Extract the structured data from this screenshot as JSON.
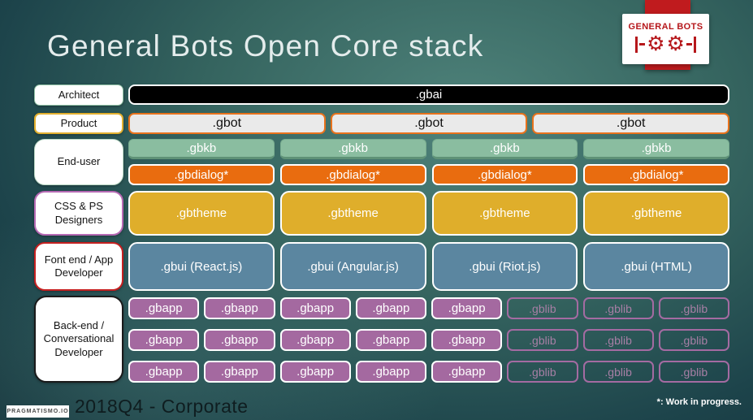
{
  "slide": {
    "title": "General Bots Open Core stack",
    "footer_caption": "2018Q4 - Corporate",
    "footnote": "*: Work in progress.",
    "watermark": "PRAGMATISMO.IO"
  },
  "logo": {
    "name": "GENERAL BOTS",
    "gear_icon": "⚙"
  },
  "roles": {
    "architect": "Architect",
    "product": "Product",
    "end_user": "End-user",
    "designers": "CSS & PS Designers",
    "frontend": "Font end / App Developer",
    "backend": "Back-end / Conversational Developer"
  },
  "stack": {
    "gbai": ".gbai",
    "gbot": [
      ".gbot",
      ".gbot",
      ".gbot"
    ],
    "gbkb": [
      ".gbkb",
      ".gbkb",
      ".gbkb",
      ".gbkb"
    ],
    "gbdialog": [
      ".gbdialog*",
      ".gbdialog*",
      ".gbdialog*",
      ".gbdialog*"
    ],
    "gbtheme": [
      ".gbtheme",
      ".gbtheme",
      ".gbtheme",
      ".gbtheme"
    ],
    "gbui": [
      ".gbui (React.js)",
      ".gbui (Angular.js)",
      ".gbui (Riot.js)",
      ".gbui (HTML)"
    ],
    "backend_rows": [
      {
        "gbapp": [
          ".gbapp",
          ".gbapp",
          ".gbapp",
          ".gbapp",
          ".gbapp"
        ],
        "gblib": [
          ".gblib",
          ".gblib",
          ".gblib"
        ]
      },
      {
        "gbapp": [
          ".gbapp",
          ".gbapp",
          ".gbapp",
          ".gbapp",
          ".gbapp"
        ],
        "gblib": [
          ".gblib",
          ".gblib",
          ".gblib"
        ]
      },
      {
        "gbapp": [
          ".gbapp",
          ".gbapp",
          ".gbapp",
          ".gbapp",
          ".gbapp"
        ],
        "gblib": [
          ".gblib",
          ".gblib",
          ".gblib"
        ]
      }
    ]
  },
  "colors": {
    "background_center": "#4f837b",
    "background_edge": "#122f38",
    "gbai_bg": "#000000",
    "gbot_bg": "#eaeaea",
    "gbot_border": "#e8721c",
    "gbkb_bg": "#8abda0",
    "gbdialog_bg": "#e96c0f",
    "gbtheme_bg": "#dfae2b",
    "gbui_bg": "#5b86a0",
    "gbapp_bg": "#a469a0",
    "gblib_border": "#a46ba2",
    "logo_red": "#b6171b"
  }
}
